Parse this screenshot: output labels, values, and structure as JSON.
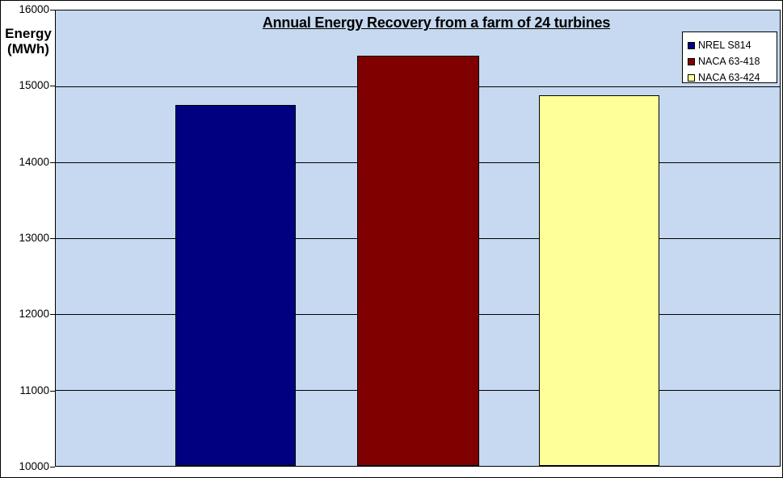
{
  "chart_data": {
    "type": "bar",
    "title": "Annual Energy Recovery from a farm of 24 turbines",
    "ylabel": "Energy (MWh)",
    "ylabel_lines": [
      "Energy",
      "(MWh)"
    ],
    "xlabel": "",
    "ylim": [
      10000,
      16000
    ],
    "ytick_step": 1000,
    "yticks": [
      16000,
      15000,
      14000,
      13000,
      12000,
      11000,
      10000
    ],
    "grid": true,
    "legend_position": "top-right",
    "categories": [
      "NREL S814",
      "NACA 63-418",
      "NACA 63-424"
    ],
    "series": [
      {
        "name": "NREL S814",
        "value": 14750,
        "color": "#000080"
      },
      {
        "name": "NACA 63-418",
        "value": 15400,
        "color": "#800000"
      },
      {
        "name": "NACA 63-424",
        "value": 14880,
        "color": "#FFFF99"
      }
    ]
  },
  "style": {
    "plot_background": "#C6D9F0",
    "gridline_color": "#000000",
    "axis_color": "#000000",
    "legend_background": "#FFFFFF",
    "text_color": "#000000"
  }
}
